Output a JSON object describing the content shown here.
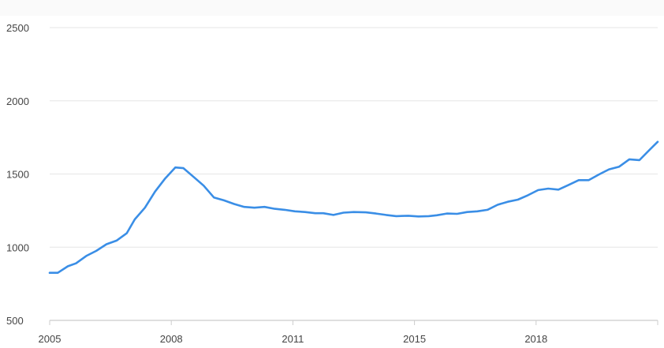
{
  "chart_data": {
    "type": "line",
    "title": "",
    "xlabel": "",
    "ylabel": "",
    "x_tick_labels": [
      "2005",
      "2008",
      "2011",
      "2015",
      "2018"
    ],
    "y_tick_labels": [
      "500",
      "1000",
      "1500",
      "2000",
      "2500"
    ],
    "xlim": [
      2005.0,
      2020.0
    ],
    "ylim": [
      500,
      2500
    ],
    "grid": true,
    "legend": "none",
    "colors": {
      "line": "#3a8ee6",
      "grid": "#e6e6e6",
      "axis": "#cccccc"
    },
    "series": [
      {
        "x": [
          2005.0,
          2005.2,
          2005.45,
          2005.65,
          2005.9,
          2006.15,
          2006.4,
          2006.65,
          2006.9,
          2007.1,
          2007.35,
          2007.6,
          2007.85,
          2008.1,
          2008.3,
          2008.55,
          2008.8,
          2009.05,
          2009.3,
          2009.55,
          2009.8,
          2010.05,
          2010.3,
          2010.55,
          2010.8,
          2011.05,
          2011.3,
          2011.55,
          2011.75,
          2012.0,
          2012.25,
          2012.5,
          2012.8,
          2013.05,
          2013.3,
          2013.55,
          2013.85,
          2014.1,
          2014.35,
          2014.55,
          2014.8,
          2015.05,
          2015.3,
          2015.55,
          2015.8,
          2016.05,
          2016.3,
          2016.55,
          2016.8,
          2017.05,
          2017.3,
          2017.55,
          2017.8,
          2018.05,
          2018.3,
          2018.55,
          2018.8,
          2019.05,
          2019.3,
          2019.55,
          2019.8,
          2020.0
        ],
        "y": [
          825,
          825,
          870,
          890,
          940,
          975,
          1020,
          1045,
          1095,
          1190,
          1270,
          1380,
          1470,
          1545,
          1540,
          1480,
          1420,
          1340,
          1320,
          1295,
          1275,
          1270,
          1275,
          1262,
          1255,
          1245,
          1240,
          1232,
          1232,
          1220,
          1236,
          1240,
          1238,
          1230,
          1220,
          1212,
          1215,
          1210,
          1212,
          1218,
          1230,
          1228,
          1240,
          1245,
          1255,
          1290,
          1310,
          1325,
          1355,
          1390,
          1400,
          1393,
          1425,
          1458,
          1458,
          1497,
          1532,
          1550,
          1600,
          1595,
          1665,
          1720
        ]
      }
    ]
  }
}
